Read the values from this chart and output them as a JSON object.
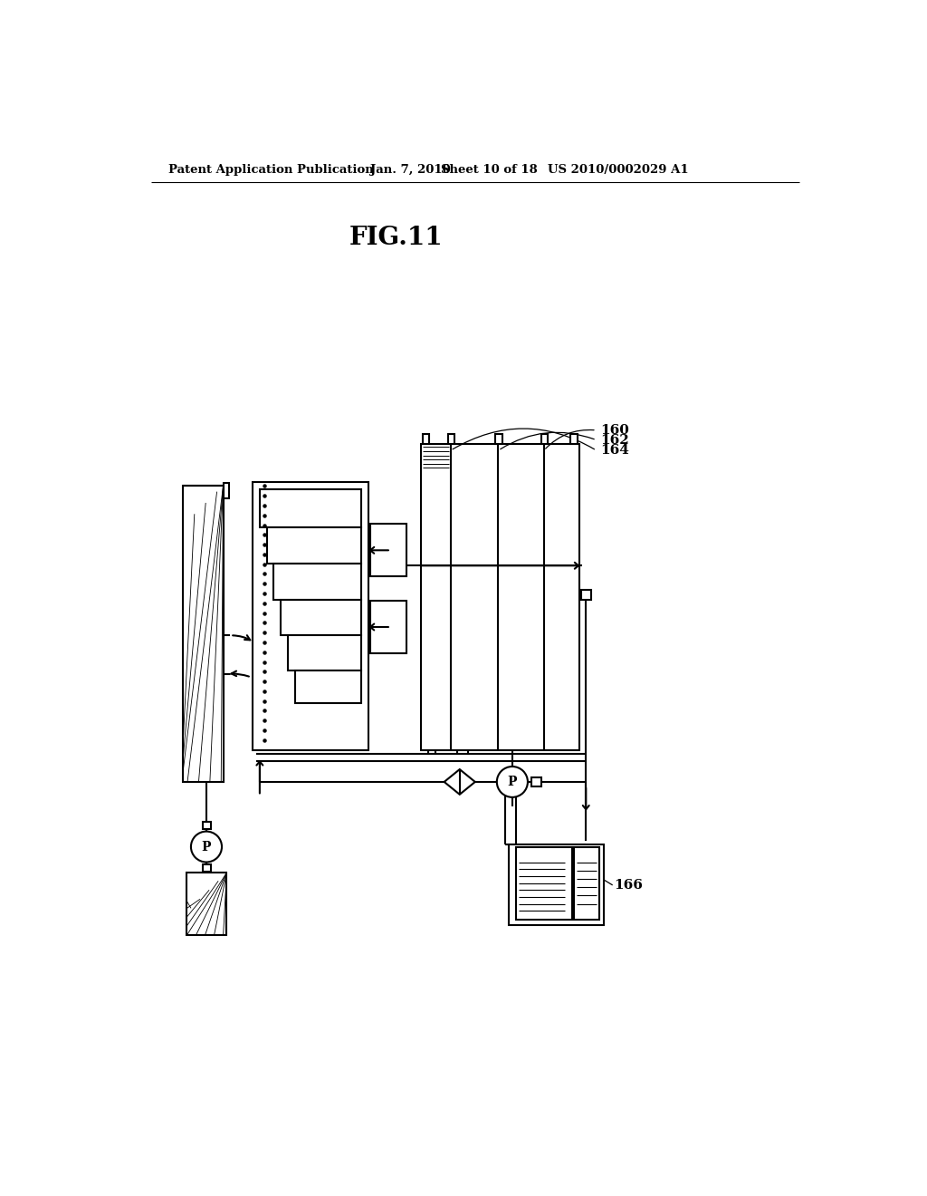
{
  "title": "FIG.11",
  "header_left": "Patent Application Publication",
  "header_date": "Jan. 7, 2010",
  "header_sheet": "Sheet 10 of 18",
  "header_right": "US 2010/0002029 A1",
  "label_160": "160",
  "label_162": "162",
  "label_164": "164",
  "label_166": "166",
  "bg_color": "#ffffff",
  "line_color": "#000000",
  "lw": 1.5
}
